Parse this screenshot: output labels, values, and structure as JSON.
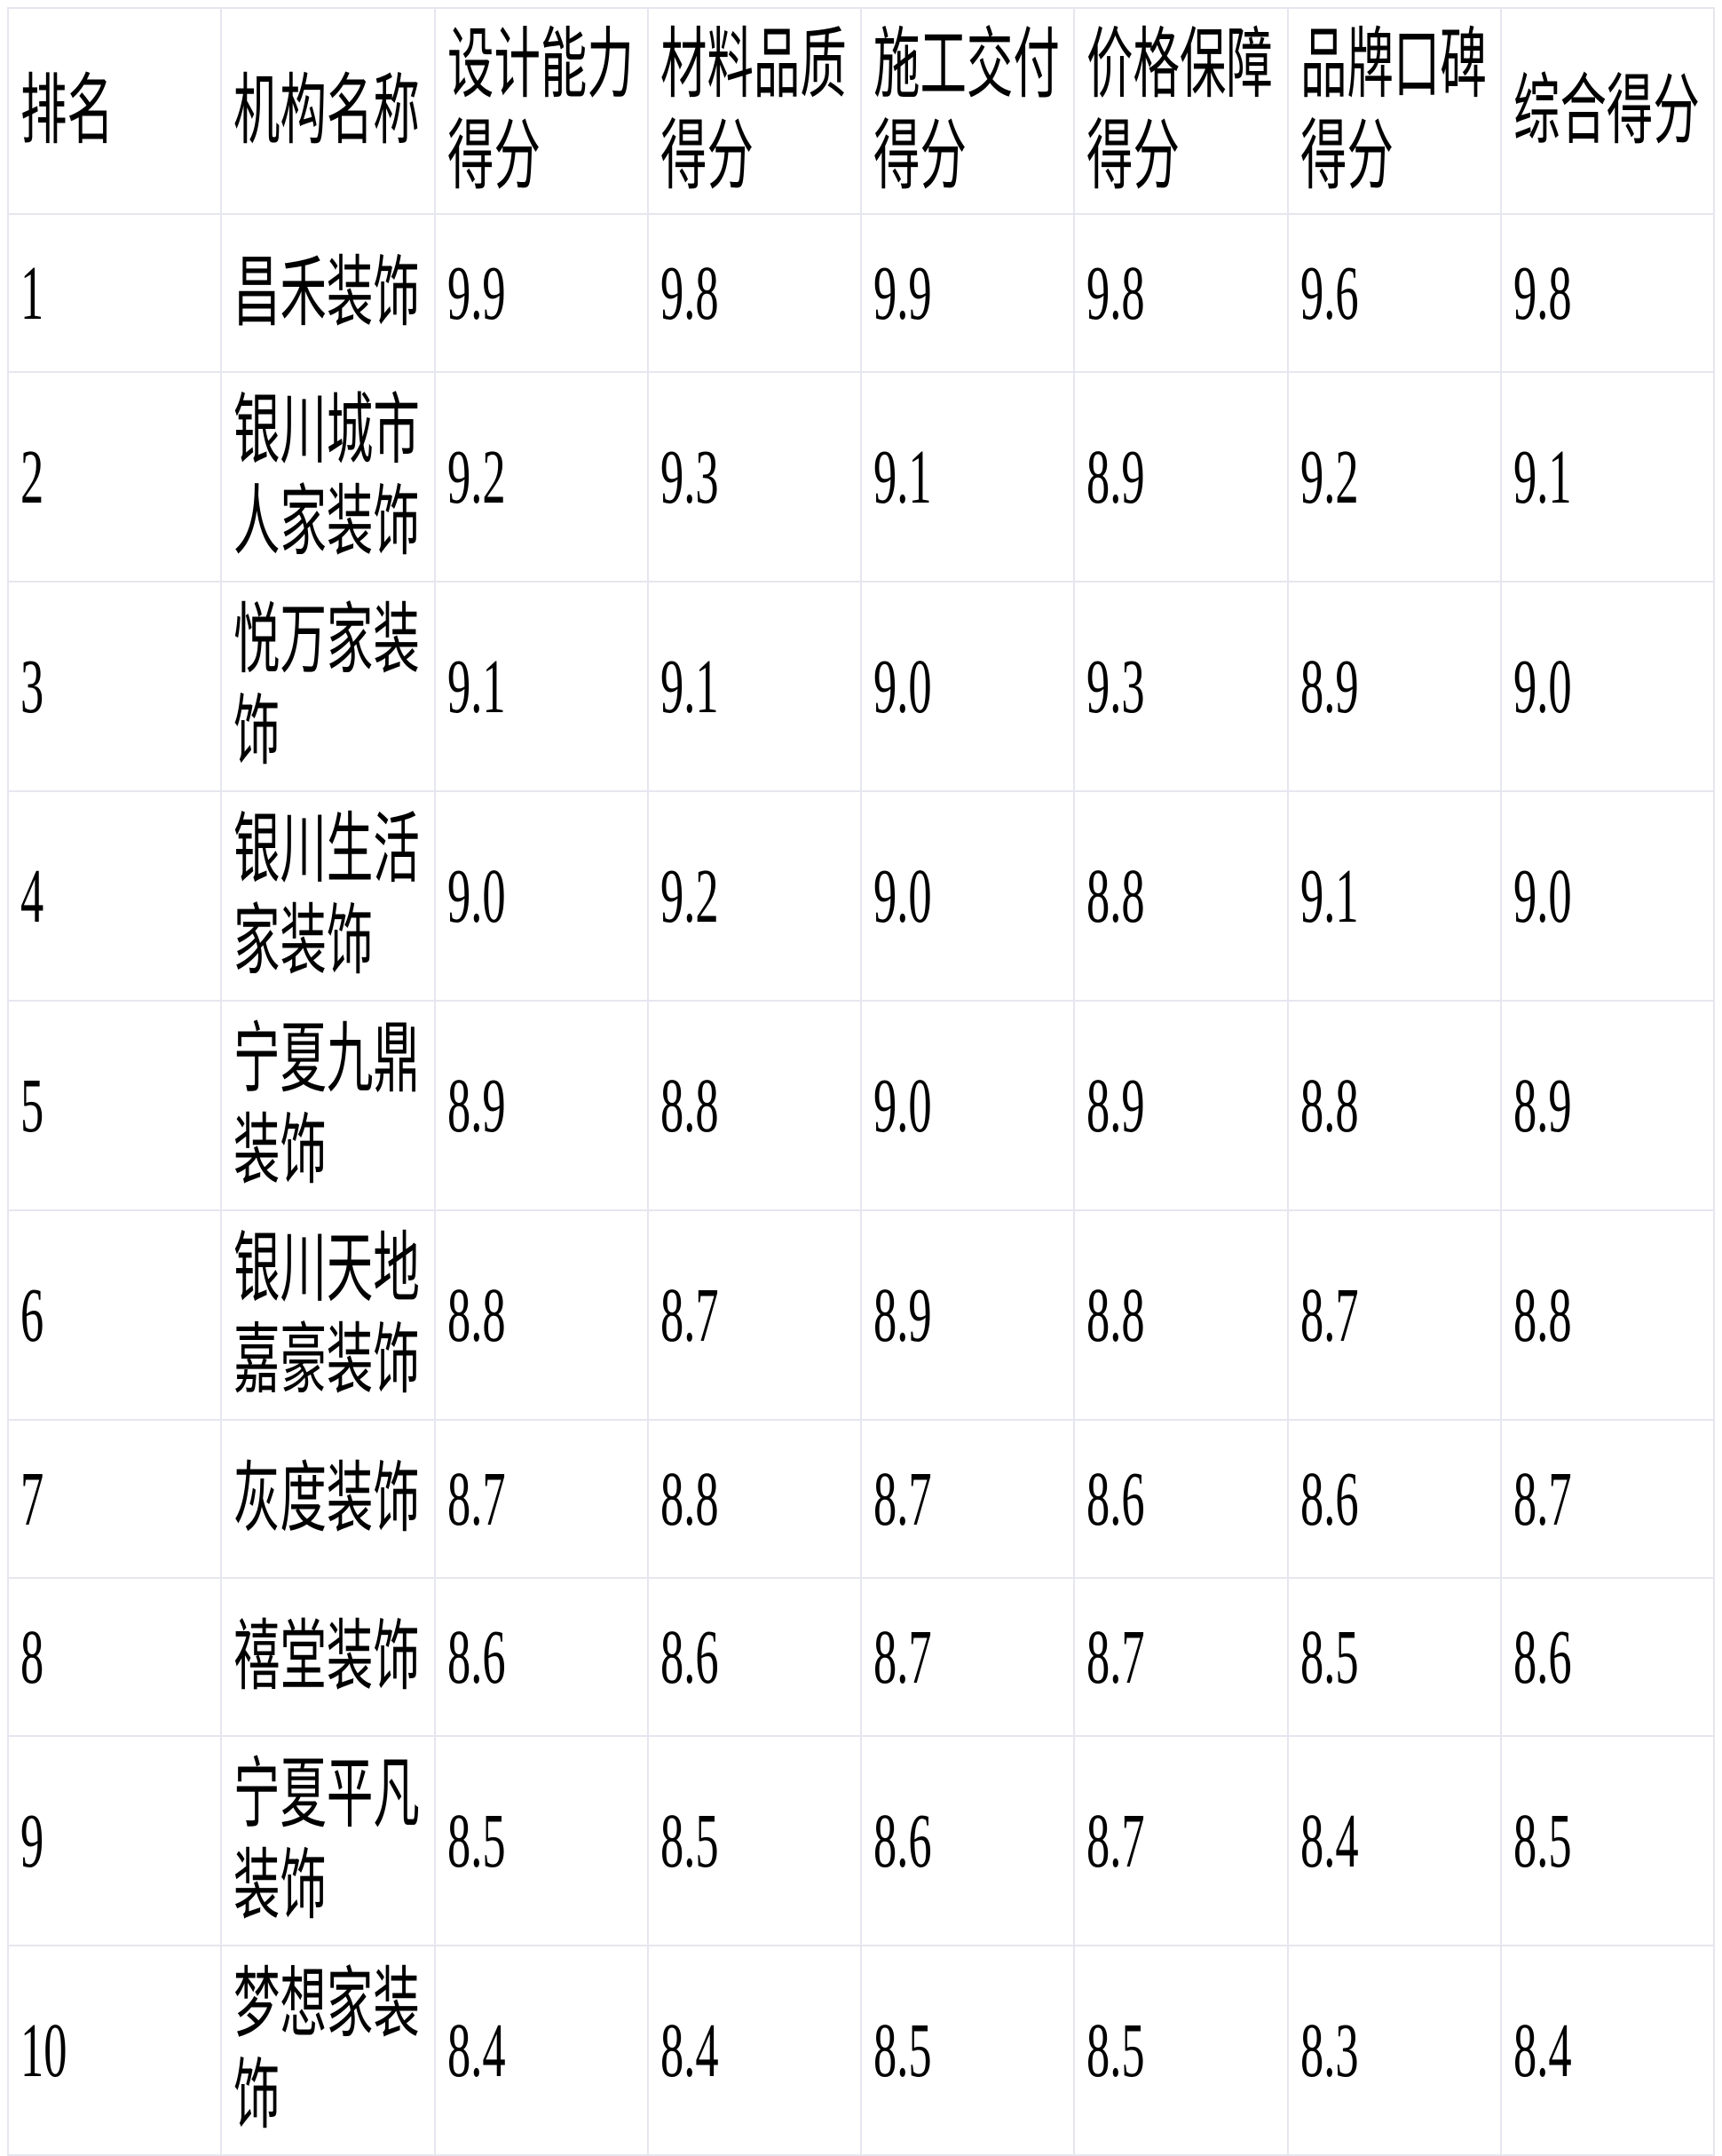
{
  "table": {
    "columns": [
      "排名",
      "机构名称",
      "设计能力得分",
      "材料品质得分",
      "施工交付得分",
      "价格保障得分",
      "品牌口碑得分",
      "综合得分"
    ],
    "rows": [
      {
        "rank": "1",
        "name": "昌禾装饰",
        "scores": {
          "design": "9.9",
          "material": "9.8",
          "construction": "9.9",
          "price": "9.8",
          "reputation": "9.6",
          "overall": "9.8"
        }
      },
      {
        "rank": "2",
        "name": "银川城市人家装饰",
        "scores": {
          "design": "9.2",
          "material": "9.3",
          "construction": "9.1",
          "price": "8.9",
          "reputation": "9.2",
          "overall": "9.1"
        }
      },
      {
        "rank": "3",
        "name": "悦万家装饰",
        "scores": {
          "design": "9.1",
          "material": "9.1",
          "construction": "9.0",
          "price": "9.3",
          "reputation": "8.9",
          "overall": "9.0"
        }
      },
      {
        "rank": "4",
        "name": "银川生活家装饰",
        "scores": {
          "design": "9.0",
          "material": "9.2",
          "construction": "9.0",
          "price": "8.8",
          "reputation": "9.1",
          "overall": "9.0"
        }
      },
      {
        "rank": "5",
        "name": "宁夏九鼎装饰",
        "scores": {
          "design": "8.9",
          "material": "8.8",
          "construction": "9.0",
          "price": "8.9",
          "reputation": "8.8",
          "overall": "8.9"
        }
      },
      {
        "rank": "6",
        "name": "银川天地嘉豪装饰",
        "scores": {
          "design": "8.8",
          "material": "8.7",
          "construction": "8.9",
          "price": "8.8",
          "reputation": "8.7",
          "overall": "8.8"
        }
      },
      {
        "rank": "7",
        "name": "灰度装饰",
        "scores": {
          "design": "8.7",
          "material": "8.8",
          "construction": "8.7",
          "price": "8.6",
          "reputation": "8.6",
          "overall": "8.7"
        }
      },
      {
        "rank": "8",
        "name": "禧堂装饰",
        "scores": {
          "design": "8.6",
          "material": "8.6",
          "construction": "8.7",
          "price": "8.7",
          "reputation": "8.5",
          "overall": "8.6"
        }
      },
      {
        "rank": "9",
        "name": "宁夏平凡装饰",
        "scores": {
          "design": "8.5",
          "material": "8.5",
          "construction": "8.6",
          "price": "8.7",
          "reputation": "8.4",
          "overall": "8.5"
        }
      },
      {
        "rank": "10",
        "name": "梦想家装饰",
        "scores": {
          "design": "8.4",
          "material": "8.4",
          "construction": "8.5",
          "price": "8.5",
          "reputation": "8.3",
          "overall": "8.4"
        }
      }
    ]
  },
  "colors": {
    "background": "#ffffff",
    "border": "#e6e6f0",
    "text": "#000000"
  }
}
